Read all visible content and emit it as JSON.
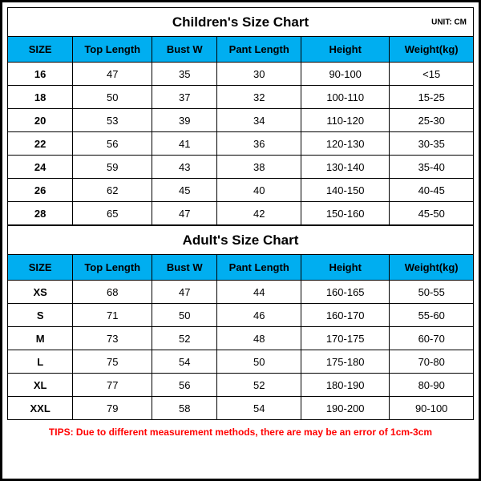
{
  "unit_label": "UNIT: CM",
  "colors": {
    "header_bg": "#00aef0",
    "border": "#000000",
    "tips": "#ff0000",
    "bg": "#ffffff"
  },
  "columns": [
    "SIZE",
    "Top Length",
    "Bust W",
    "Pant Length",
    "Height",
    "Weight(kg)"
  ],
  "children": {
    "title": "Children's Size Chart",
    "rows": [
      [
        "16",
        "47",
        "35",
        "30",
        "90-100",
        "<15"
      ],
      [
        "18",
        "50",
        "37",
        "32",
        "100-110",
        "15-25"
      ],
      [
        "20",
        "53",
        "39",
        "34",
        "110-120",
        "25-30"
      ],
      [
        "22",
        "56",
        "41",
        "36",
        "120-130",
        "30-35"
      ],
      [
        "24",
        "59",
        "43",
        "38",
        "130-140",
        "35-40"
      ],
      [
        "26",
        "62",
        "45",
        "40",
        "140-150",
        "40-45"
      ],
      [
        "28",
        "65",
        "47",
        "42",
        "150-160",
        "45-50"
      ]
    ]
  },
  "adult": {
    "title": "Adult's Size Chart",
    "rows": [
      [
        "XS",
        "68",
        "47",
        "44",
        "160-165",
        "50-55"
      ],
      [
        "S",
        "71",
        "50",
        "46",
        "160-170",
        "55-60"
      ],
      [
        "M",
        "73",
        "52",
        "48",
        "170-175",
        "60-70"
      ],
      [
        "L",
        "75",
        "54",
        "50",
        "175-180",
        "70-80"
      ],
      [
        "XL",
        "77",
        "56",
        "52",
        "180-190",
        "80-90"
      ],
      [
        "XXL",
        "79",
        "58",
        "54",
        "190-200",
        "90-100"
      ]
    ]
  },
  "tips": "TIPS: Due to different measurement methods, there are may be an error of 1cm-3cm"
}
